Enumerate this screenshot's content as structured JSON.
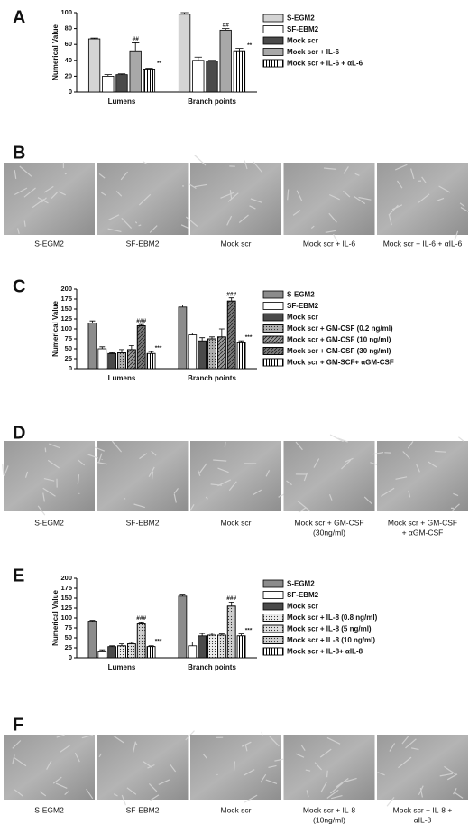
{
  "chart_data": [
    {
      "type": "bar",
      "y_label": "Numerical Value",
      "categories": [
        "Lumens",
        "Branch points"
      ],
      "ylim": [
        0,
        100
      ],
      "yticks": [
        0,
        20,
        40,
        60,
        80,
        100
      ],
      "series": [
        {
          "name": "S-EGM2",
          "color": "#d4d4d4",
          "values": [
            67,
            98
          ],
          "errors": [
            1,
            2
          ]
        },
        {
          "name": "SF-EBM2",
          "color": "#ffffff",
          "values": [
            20,
            40
          ],
          "errors": [
            2,
            4
          ]
        },
        {
          "name": "Mock scr",
          "color": "#4a4a4a",
          "values": [
            22,
            39
          ],
          "errors": [
            1,
            1
          ]
        },
        {
          "name": "Mock scr + IL-6",
          "color": "#a8a8a8",
          "values": [
            52,
            78
          ],
          "errors": [
            10,
            2
          ],
          "annotations": [
            "##",
            "##"
          ]
        },
        {
          "name": "Mock scr + IL-6 + αL-6",
          "color": "#ffffff",
          "hatch": "vertical",
          "values": [
            29,
            52
          ],
          "errors": [
            1,
            3
          ],
          "annotations": [
            "**",
            "**"
          ]
        }
      ]
    },
    {
      "type": "bar",
      "y_label": "Numerical Value",
      "categories": [
        "Lumens",
        "Branch points"
      ],
      "ylim": [
        0,
        200
      ],
      "yticks": [
        0,
        25,
        50,
        75,
        100,
        125,
        150,
        175,
        200
      ],
      "series": [
        {
          "name": "S-EGM2",
          "color": "#8c8c8c",
          "values": [
            115,
            155
          ],
          "errors": [
            5,
            5
          ]
        },
        {
          "name": "SF-EBM2",
          "color": "#ffffff",
          "values": [
            50,
            85
          ],
          "errors": [
            5,
            5
          ]
        },
        {
          "name": "Mock scr",
          "color": "#4a4a4a",
          "values": [
            38,
            70
          ],
          "errors": [
            2,
            8
          ]
        },
        {
          "name": "Mock scr + GM-CSF (0.2 ng/ml)",
          "color": "#b0b0b0",
          "hatch": "dots",
          "values": [
            40,
            75
          ],
          "errors": [
            8,
            5
          ]
        },
        {
          "name": "Mock scr + GM-CSF (10 ng/ml)",
          "color": "#9a9a9a",
          "hatch": "diagonal",
          "values": [
            48,
            80
          ],
          "errors": [
            10,
            20
          ]
        },
        {
          "name": "Mock scr + GM-CSF (30 ng/ml)",
          "color": "#7a7a7a",
          "hatch": "diagonal",
          "values": [
            108,
            170
          ],
          "errors": [
            3,
            8
          ],
          "annotations": [
            "###",
            "###"
          ]
        },
        {
          "name": "Mock scr + GM-SCF+ αGM-CSF",
          "color": "#ffffff",
          "hatch": "vertical",
          "values": [
            38,
            65
          ],
          "errors": [
            5,
            5
          ],
          "annotations": [
            "***",
            "***"
          ]
        }
      ]
    },
    {
      "type": "bar",
      "y_label": "Numerical Value",
      "categories": [
        "Lumens",
        "Branch points"
      ],
      "ylim": [
        0,
        200
      ],
      "yticks": [
        0,
        25,
        50,
        75,
        100,
        125,
        150,
        175,
        200
      ],
      "series": [
        {
          "name": "S-EGM2",
          "color": "#8c8c8c",
          "values": [
            92,
            155
          ],
          "errors": [
            2,
            5
          ]
        },
        {
          "name": "SF-EBM2",
          "color": "#ffffff",
          "values": [
            15,
            30
          ],
          "errors": [
            5,
            10
          ]
        },
        {
          "name": "Mock scr",
          "color": "#4a4a4a",
          "values": [
            28,
            55
          ],
          "errors": [
            2,
            6
          ]
        },
        {
          "name": "Mock scr + IL-8 (0.8 ng/ml)",
          "color": "#ececec",
          "hatch": "dots",
          "values": [
            30,
            57
          ],
          "errors": [
            5,
            5
          ]
        },
        {
          "name": "Mock scr + IL-8 (5 ng/ml)",
          "color": "#e0e0e0",
          "hatch": "dots",
          "values": [
            35,
            57
          ],
          "errors": [
            4,
            3
          ]
        },
        {
          "name": "Mock scr + IL-8 (10 ng/ml)",
          "color": "#d0d0d0",
          "hatch": "dots",
          "values": [
            85,
            130
          ],
          "errors": [
            5,
            10
          ],
          "annotations": [
            "###",
            "###"
          ]
        },
        {
          "name": "Mock scr + IL-8+ αIL-8",
          "color": "#ffffff",
          "hatch": "vertical",
          "values": [
            28,
            55
          ],
          "errors": [
            2,
            5
          ],
          "annotations": [
            "***",
            "***"
          ]
        }
      ]
    }
  ],
  "chart_letters": [
    "A",
    "C",
    "E"
  ],
  "image_panels": [
    {
      "letter": "B",
      "captions": [
        [
          "S-EGM2"
        ],
        [
          "SF-EBM2"
        ],
        [
          "Mock scr"
        ],
        [
          "Mock scr + IL-6"
        ],
        [
          "Mock scr + IL-6 + αIL-6"
        ]
      ]
    },
    {
      "letter": "D",
      "captions": [
        [
          "S-EGM2"
        ],
        [
          "SF-EBM2"
        ],
        [
          "Mock scr"
        ],
        [
          "Mock scr + GM-CSF",
          "(30ng/ml)"
        ],
        [
          "Mock scr + GM-CSF",
          "+ αGM-CSF"
        ]
      ]
    },
    {
      "letter": "F",
      "captions": [
        [
          "S-EGM2"
        ],
        [
          "SF-EBM2"
        ],
        [
          "Mock scr"
        ],
        [
          "Mock scr + IL-8",
          "(10ng/ml)"
        ],
        [
          "Mock scr + IL-8 +",
          "αIL-8"
        ]
      ]
    }
  ]
}
